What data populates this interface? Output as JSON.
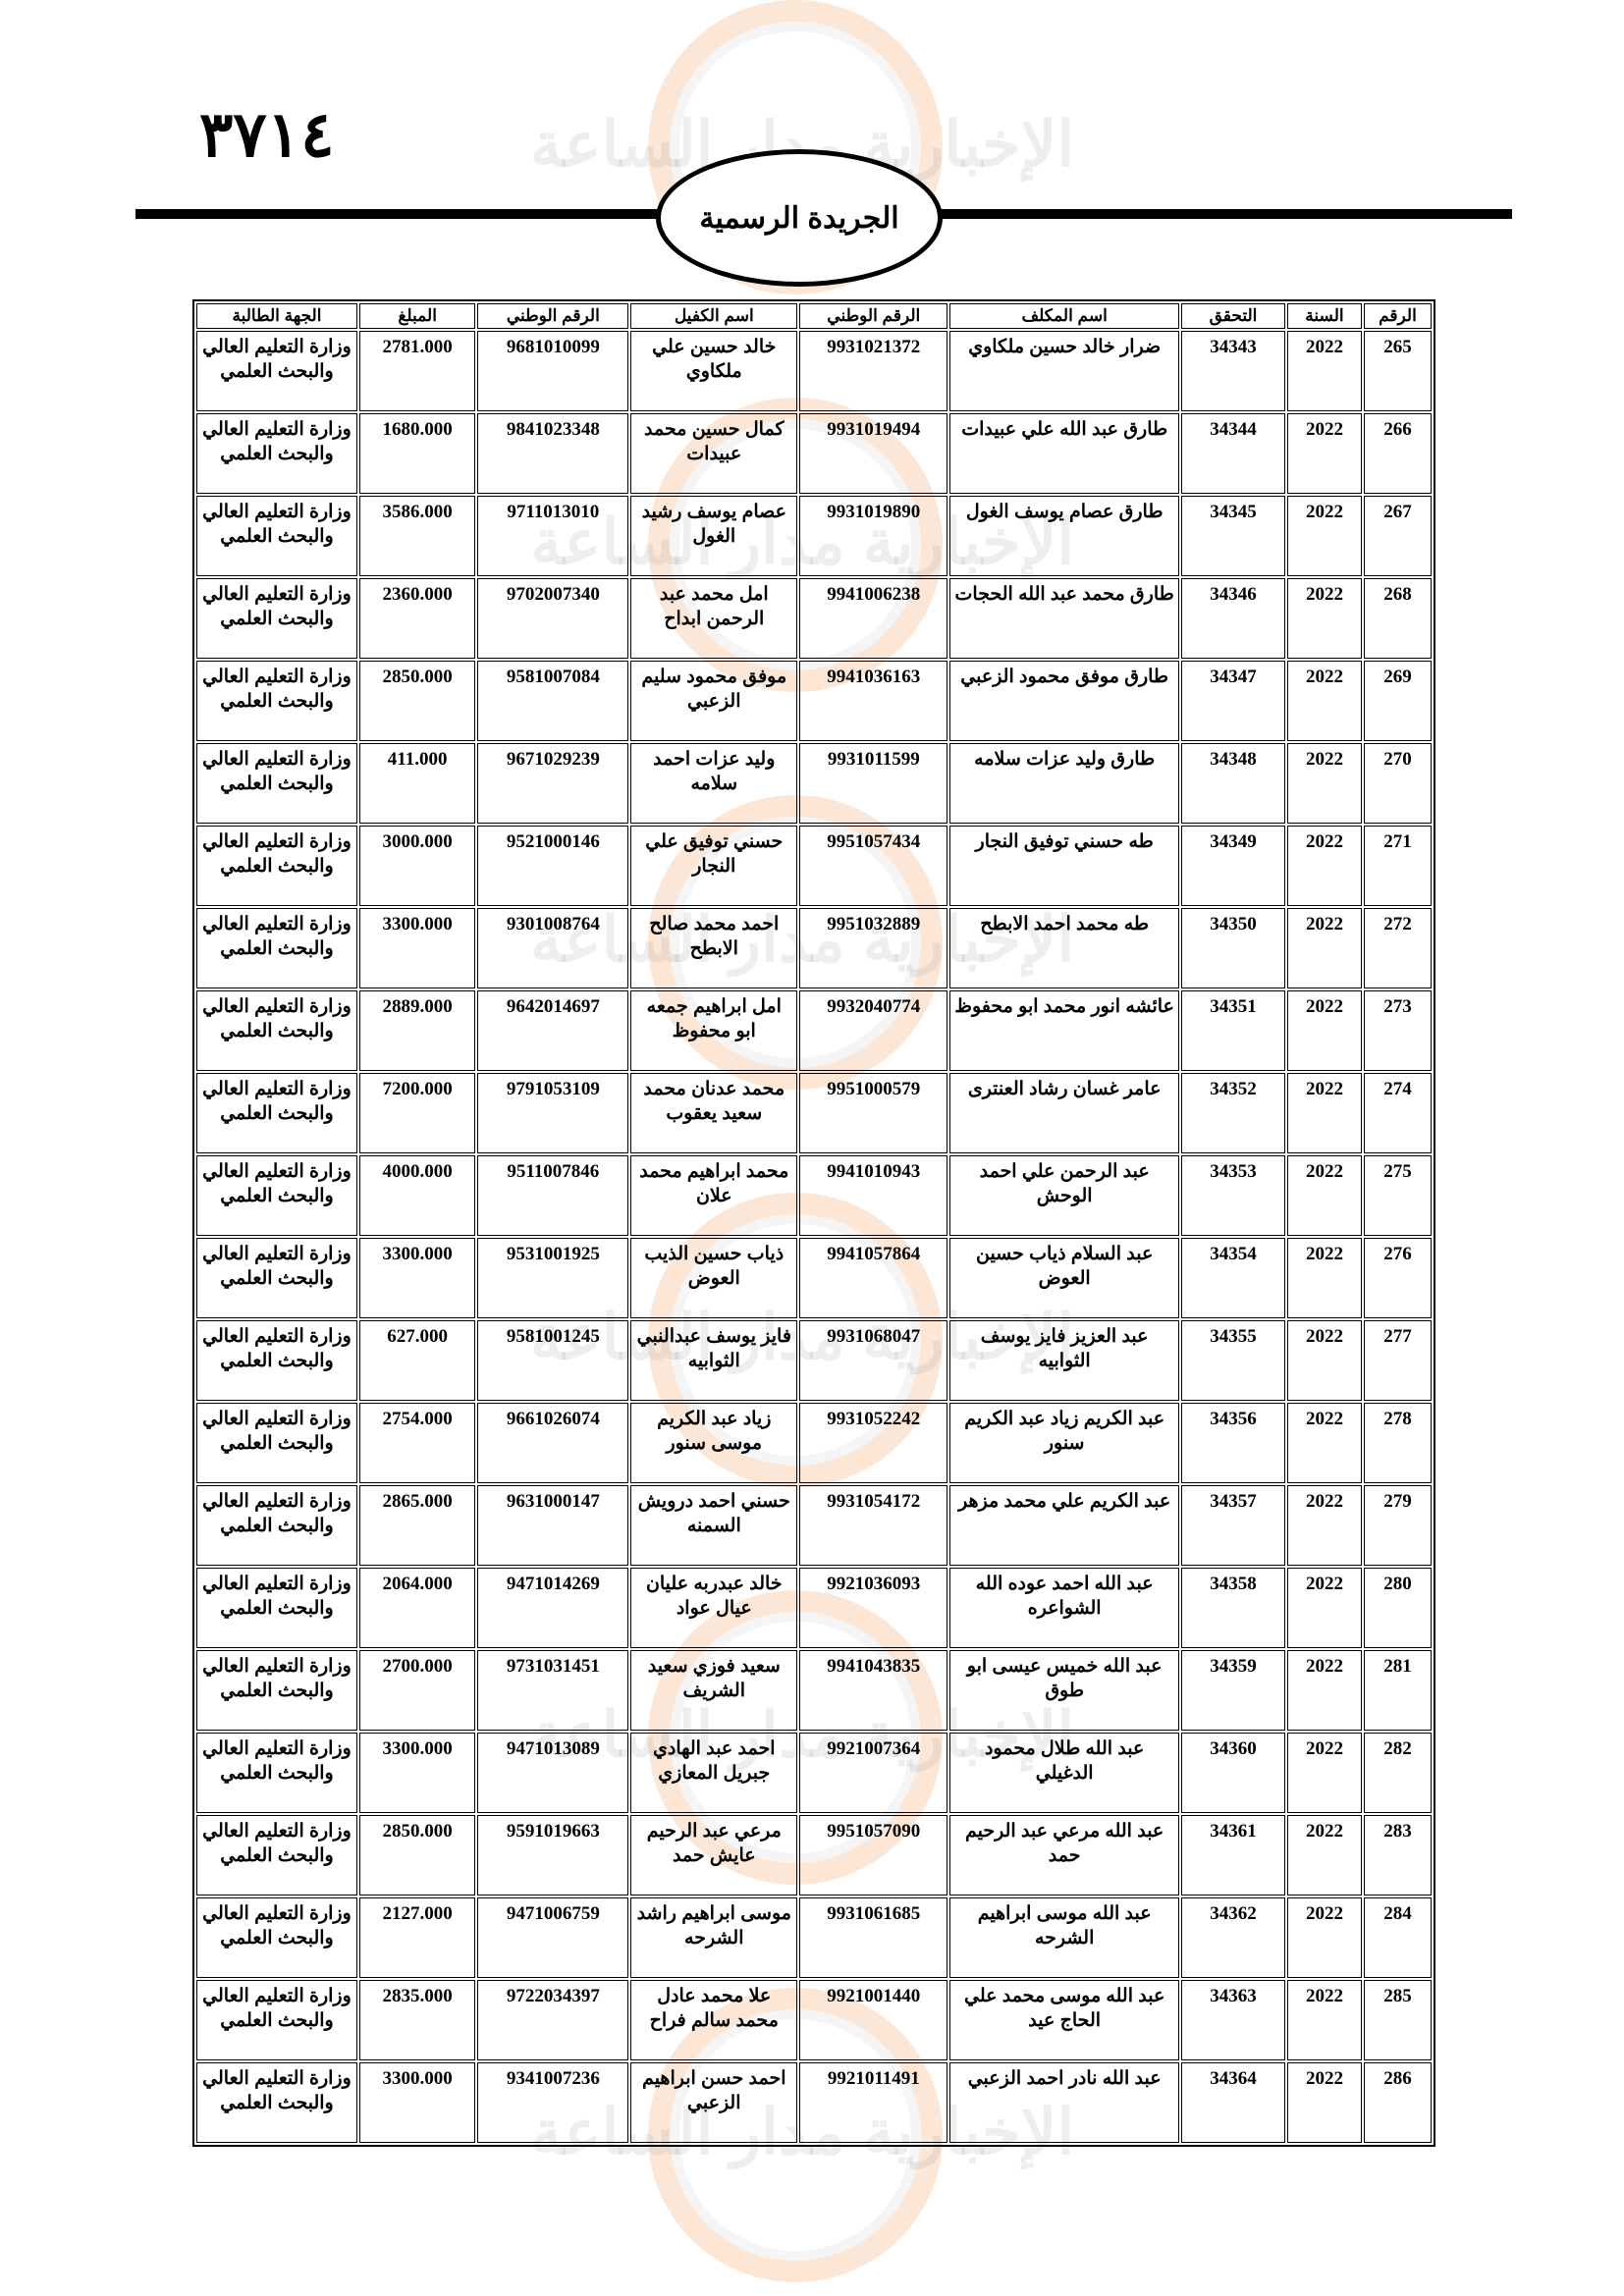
{
  "page_number": "٣٧١٤",
  "header_title": "الجريدة الرسمية",
  "watermark": {
    "text_main": "مدار الساعة",
    "text_sub": "الإخبارية",
    "accent_color": "#f5aa6e"
  },
  "table": {
    "columns": [
      "الرقم",
      "السنة",
      "التحقق",
      "اسم المكلف",
      "الرقم الوطني",
      "اسم الكفيل",
      "الرقم الوطني",
      "المبلغ",
      "الجهة الطالبة"
    ],
    "rows": [
      [
        "265",
        "2022",
        "34343",
        "ضرار خالد حسين ملكاوي",
        "9931021372",
        "خالد حسين علي ملكاوي",
        "9681010099",
        "2781.000",
        "وزارة التعليم العالي والبحث العلمي"
      ],
      [
        "266",
        "2022",
        "34344",
        "طارق عبد الله علي عبيدات",
        "9931019494",
        "كمال حسين محمد عبيدات",
        "9841023348",
        "1680.000",
        "وزارة التعليم العالي والبحث العلمي"
      ],
      [
        "267",
        "2022",
        "34345",
        "طارق عصام يوسف الغول",
        "9931019890",
        "عصام يوسف رشيد الغول",
        "9711013010",
        "3586.000",
        "وزارة التعليم العالي والبحث العلمي"
      ],
      [
        "268",
        "2022",
        "34346",
        "طارق محمد عبد الله الحجات",
        "9941006238",
        "امل محمد عبد الرحمن ابداح",
        "9702007340",
        "2360.000",
        "وزارة التعليم العالي والبحث العلمي"
      ],
      [
        "269",
        "2022",
        "34347",
        "طارق موفق محمود الزعبي",
        "9941036163",
        "موفق محمود سليم الزعبي",
        "9581007084",
        "2850.000",
        "وزارة التعليم العالي والبحث العلمي"
      ],
      [
        "270",
        "2022",
        "34348",
        "طارق وليد عزات سلامه",
        "9931011599",
        "وليد عزات احمد سلامه",
        "9671029239",
        "411.000",
        "وزارة التعليم العالي والبحث العلمي"
      ],
      [
        "271",
        "2022",
        "34349",
        "طه حسني توفيق النجار",
        "9951057434",
        "حسني توفيق علي النجار",
        "9521000146",
        "3000.000",
        "وزارة التعليم العالي والبحث العلمي"
      ],
      [
        "272",
        "2022",
        "34350",
        "طه محمد احمد الابطح",
        "9951032889",
        "احمد محمد صالح الابطح",
        "9301008764",
        "3300.000",
        "وزارة التعليم العالي والبحث العلمي"
      ],
      [
        "273",
        "2022",
        "34351",
        "عائشه انور محمد ابو محفوظ",
        "9932040774",
        "امل ابراهيم جمعه ابو محفوظ",
        "9642014697",
        "2889.000",
        "وزارة التعليم العالي والبحث العلمي"
      ],
      [
        "274",
        "2022",
        "34352",
        "عامر غسان رشاد العنترى",
        "9951000579",
        "محمد عدنان محمد سعيد يعقوب",
        "9791053109",
        "7200.000",
        "وزارة التعليم العالي والبحث العلمي"
      ],
      [
        "275",
        "2022",
        "34353",
        "عبد الرحمن علي احمد الوحش",
        "9941010943",
        "محمد ابراهيم محمد علان",
        "9511007846",
        "4000.000",
        "وزارة التعليم العالي والبحث العلمي"
      ],
      [
        "276",
        "2022",
        "34354",
        "عبد السلام ذياب حسين العوض",
        "9941057864",
        "ذياب حسين الذيب العوض",
        "9531001925",
        "3300.000",
        "وزارة التعليم العالي والبحث العلمي"
      ],
      [
        "277",
        "2022",
        "34355",
        "عبد العزيز فايز يوسف الثوابيه",
        "9931068047",
        "فايز يوسف عبدالنبي الثوابيه",
        "9581001245",
        "627.000",
        "وزارة التعليم العالي والبحث العلمي"
      ],
      [
        "278",
        "2022",
        "34356",
        "عبد الكريم زياد عبد الكريم سنور",
        "9931052242",
        "زياد عبد الكريم موسى سنور",
        "9661026074",
        "2754.000",
        "وزارة التعليم العالي والبحث العلمي"
      ],
      [
        "279",
        "2022",
        "34357",
        "عبد الكريم علي محمد مزهر",
        "9931054172",
        "حسني احمد درويش السمنه",
        "9631000147",
        "2865.000",
        "وزارة التعليم العالي والبحث العلمي"
      ],
      [
        "280",
        "2022",
        "34358",
        "عبد الله احمد عوده الله الشواعره",
        "9921036093",
        "خالد عبدربه عليان عيال عواد",
        "9471014269",
        "2064.000",
        "وزارة التعليم العالي والبحث العلمي"
      ],
      [
        "281",
        "2022",
        "34359",
        "عبد الله خميس عيسى ابو طوق",
        "9941043835",
        "سعيد فوزي سعيد الشريف",
        "9731031451",
        "2700.000",
        "وزارة التعليم العالي والبحث العلمي"
      ],
      [
        "282",
        "2022",
        "34360",
        "عبد الله طلال محمود الدغيلي",
        "9921007364",
        "احمد عبد الهادي جبريل المعازي",
        "9471013089",
        "3300.000",
        "وزارة التعليم العالي والبحث العلمي"
      ],
      [
        "283",
        "2022",
        "34361",
        "عبد الله مرعي عبد الرحيم حمد",
        "9951057090",
        "مرعي عبد الرحيم عايش حمد",
        "9591019663",
        "2850.000",
        "وزارة التعليم العالي والبحث العلمي"
      ],
      [
        "284",
        "2022",
        "34362",
        "عبد الله موسى ابراهيم الشرحه",
        "9931061685",
        "موسى ابراهيم راشد الشرحه",
        "9471006759",
        "2127.000",
        "وزارة التعليم العالي والبحث العلمي"
      ],
      [
        "285",
        "2022",
        "34363",
        "عبد الله موسى محمد علي الحاج عيد",
        "9921001440",
        "علا محمد عادل محمد سالم فراح",
        "9722034397",
        "2835.000",
        "وزارة التعليم العالي والبحث العلمي"
      ],
      [
        "286",
        "2022",
        "34364",
        "عبد الله نادر احمد الزعبي",
        "9921011491",
        "احمد حسن ابراهيم الزعبي",
        "9341007236",
        "3300.000",
        "وزارة التعليم العالي والبحث العلمي"
      ]
    ]
  }
}
